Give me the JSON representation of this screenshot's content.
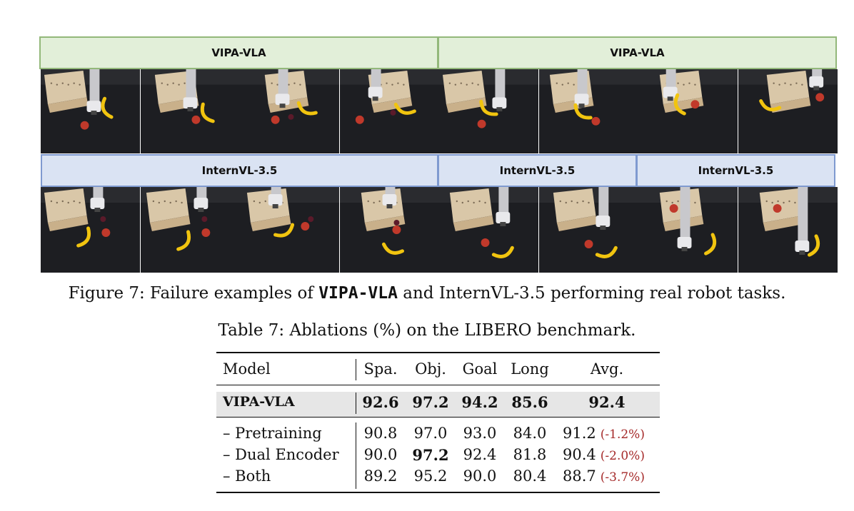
{
  "figure": {
    "headers": {
      "vipa_left": "VIPA-VLA",
      "vipa_right": "VIPA-VLA",
      "intern_left": "InternVL-3.5",
      "intern_mid": "InternVL-3.5",
      "intern_right": "InternVL-3.5"
    },
    "caption_prefix": "Figure 7: Failure examples of ",
    "caption_model": "VIPA-VLA",
    "caption_suffix": " and InternVL-3.5 performing real robot tasks.",
    "colors": {
      "green_header_bg": "#e2efd9",
      "green_header_border": "#93b87a",
      "blue_header_bg": "#dae3f3",
      "blue_header_border": "#7f9ad0"
    }
  },
  "table": {
    "caption": "Table 7: Ablations (%) on the LIBERO benchmark.",
    "columns": [
      "Model",
      "Spa.",
      "Obj.",
      "Goal",
      "Long",
      "Avg."
    ],
    "main_row": {
      "model": "VIPA-VLA",
      "spa": "92.6",
      "obj": "97.2",
      "goal": "94.2",
      "long": "85.6",
      "avg": "92.4"
    },
    "rows": [
      {
        "model": "– Pretraining",
        "spa": "90.8",
        "obj": "97.0",
        "goal": "93.0",
        "long": "84.0",
        "avg": "91.2",
        "delta": "(-1.2%)"
      },
      {
        "model": "– Dual Encoder",
        "spa": "90.0",
        "obj": "97.2",
        "goal": "92.4",
        "long": "81.8",
        "avg": "90.4",
        "delta": "(-2.0%)"
      },
      {
        "model": "– Both",
        "spa": "89.2",
        "obj": "95.2",
        "goal": "90.0",
        "long": "80.4",
        "avg": "88.7",
        "delta": "(-3.7%)"
      }
    ],
    "colors": {
      "delta": "#a52a2a",
      "highlight_row": "#e6e6e6"
    }
  }
}
